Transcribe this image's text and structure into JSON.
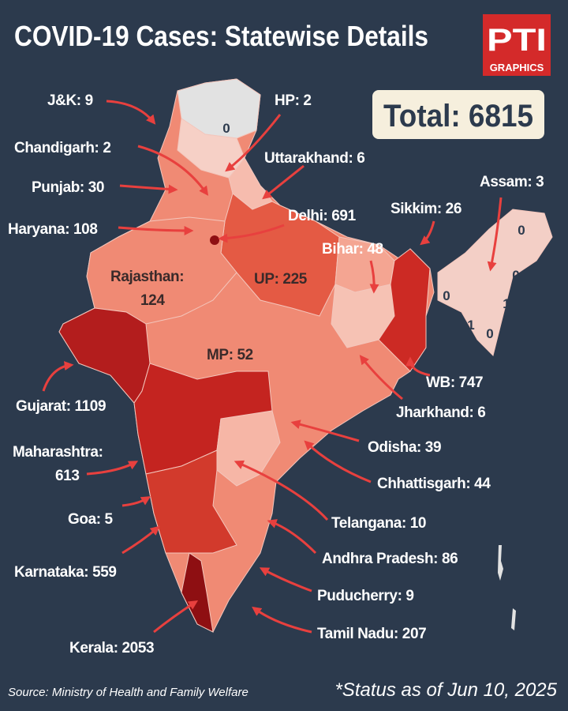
{
  "header": {
    "title": "COVID-19 Cases: Statewise Details",
    "logo": {
      "mark": "PTI",
      "text": "GRAPHICS"
    }
  },
  "total": "Total: 6815",
  "labels": [
    [
      "J&K: 9"
    ],
    [
      "HP: 2"
    ],
    [
      "Chandigarh: 2"
    ],
    [
      "Uttarakhand: 6"
    ],
    [
      "Punjab: 30"
    ],
    [
      "Assam: 3"
    ],
    [
      "Sikkim: 26"
    ],
    [
      "Haryana: 108"
    ],
    [
      "Delhi: 691"
    ],
    [
      "Bihar: 48"
    ],
    [
      "Rajasthan:",
      "124"
    ],
    [
      "UP: 225"
    ],
    [
      "MP: 52"
    ],
    [
      "Gujarat: 1109"
    ],
    [
      "WB: 747"
    ],
    [
      "Jharkhand: 6"
    ],
    [
      "Maharashtra:",
      "613"
    ],
    [
      "Odisha: 39"
    ],
    [
      "Chhattisgarh: 44"
    ],
    [
      "Goa: 5"
    ],
    [
      "Telangana: 10"
    ],
    [
      "Andhra Pradesh: 86"
    ],
    [
      "Karnataka: 559"
    ],
    [
      "Puducherry: 9"
    ],
    [
      "Tamil Nadu: 207"
    ],
    [
      "Kerala: 2053"
    ]
  ],
  "map_values": [
    "0",
    "0",
    "0",
    "0",
    "1",
    "1",
    "0"
  ],
  "footer": {
    "source": "Source: Ministry of Health and Family Welfare",
    "status": "*Status as of Jun 10, 2025"
  }
}
